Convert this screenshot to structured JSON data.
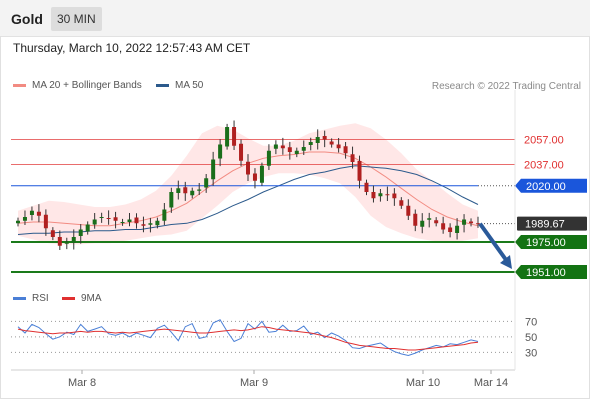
{
  "header": {
    "symbol": "Gold",
    "timeframe": "30 MIN",
    "timestamp": "Thursday, March 10, 2022 12:57:43 AM CET"
  },
  "legend": {
    "bollinger": {
      "label": "MA 20 + Bollinger Bands",
      "color": "#f28b82"
    },
    "ma50": {
      "label": "MA 50",
      "color": "#2c5a8c"
    },
    "rsi": {
      "label": "RSI",
      "color": "#4a7fd6"
    },
    "rsi_ma": {
      "label": "9MA",
      "color": "#e03030"
    }
  },
  "credit": "Research © 2022 Trading Central",
  "chart_data": [
    {
      "type": "candlestick",
      "y_range": [
        1943,
        2095
      ],
      "levels": [
        {
          "label": "2057.00",
          "value": 2057.0,
          "color": "#e03030",
          "kind": "resistance"
        },
        {
          "label": "2037.00",
          "value": 2037.0,
          "color": "#e03030",
          "kind": "resistance"
        },
        {
          "label": "2020.00",
          "value": 2020.0,
          "color": "#1a56db",
          "kind": "pivot"
        },
        {
          "label": "1989.67",
          "value": 1989.67,
          "color": "#333333",
          "kind": "last"
        },
        {
          "label": "1975.00",
          "value": 1975.0,
          "color": "#1a7a1a",
          "kind": "support"
        },
        {
          "label": "1951.00",
          "value": 1951.0,
          "color": "#1a7a1a",
          "kind": "support"
        }
      ],
      "x_labels": [
        "Mar 8",
        "Mar 9",
        "Mar 10",
        "Mar 14"
      ],
      "path": [
        1992,
        1995,
        2000,
        1996,
        1986,
        1979,
        1972,
        1975,
        1979,
        1985,
        1989,
        1993,
        1995,
        1994,
        1992,
        1991,
        1993,
        1990,
        1988,
        1990,
        1992,
        2001,
        2015,
        2018,
        2014,
        2016,
        2017,
        2026,
        2041,
        2053,
        2067,
        2052,
        2040,
        2029,
        2024,
        2036,
        2048,
        2053,
        2050,
        2047,
        2048,
        2051,
        2055,
        2059,
        2057,
        2053,
        2050,
        2046,
        2039,
        2024,
        2015,
        2010,
        2014,
        2013,
        2010,
        2004,
        1996,
        1988,
        1992,
        1994,
        1990,
        1985,
        1983,
        1988,
        1993,
        1990,
        1989.67
      ],
      "bollinger": {
        "middle": [
          1990,
          1991,
          1991,
          1990,
          1989,
          1988,
          1988,
          1990,
          1992,
          1995,
          2000,
          2006,
          2015,
          2024,
          2032,
          2038,
          2042,
          2044,
          2045,
          2047,
          2047,
          2046,
          2042,
          2035,
          2027,
          2018,
          2009,
          2001,
          1995,
          1991,
          1988
        ],
        "upper": [
          2000,
          2004,
          2008,
          2007,
          2005,
          2003,
          2003,
          2005,
          2009,
          2016,
          2028,
          2044,
          2062,
          2068,
          2065,
          2058,
          2052,
          2052,
          2056,
          2062,
          2065,
          2068,
          2070,
          2066,
          2057,
          2046,
          2033,
          2024,
          2014,
          2005,
          2000
        ],
        "lower": [
          1980,
          1977,
          1974,
          1973,
          1973,
          1974,
          1974,
          1976,
          1978,
          1980,
          1981,
          1984,
          1994,
          2004,
          2015,
          2022,
          2027,
          2030,
          2030,
          2029,
          2026,
          2022,
          2011,
          1996,
          1987,
          1982,
          1978,
          1976,
          1975,
          1976,
          1978
        ]
      },
      "ma50": [
        1981,
        1982,
        1982,
        1983,
        1983,
        1984,
        1984,
        1985,
        1985,
        1987,
        1989,
        1990,
        1993,
        1998,
        2004,
        2009,
        2015,
        2020,
        2025,
        2029,
        2031,
        2034,
        2036,
        2035,
        2034,
        2032,
        2029,
        2024,
        2018,
        2011,
        2005
      ]
    },
    {
      "type": "line",
      "name": "RSI",
      "y_ticks": [
        70,
        50,
        30
      ],
      "y_range": [
        15,
        82
      ],
      "rsi": [
        63,
        55,
        66,
        62,
        54,
        47,
        50,
        56,
        53,
        66,
        57,
        60,
        63,
        54,
        52,
        55,
        50,
        55,
        52,
        49,
        61,
        65,
        56,
        45,
        63,
        67,
        48,
        50,
        68,
        72,
        57,
        44,
        48,
        67,
        60,
        70,
        56,
        57,
        65,
        57,
        58,
        64,
        53,
        56,
        49,
        55,
        51,
        45,
        36,
        35,
        38,
        40,
        42,
        36,
        31,
        28,
        26,
        29,
        33,
        36,
        39,
        37,
        41,
        40,
        43,
        46,
        44
      ],
      "rsi_ma": [
        60,
        58,
        57,
        56,
        55,
        54,
        55,
        55,
        56,
        57,
        56,
        57,
        57,
        56,
        55,
        56,
        55,
        56,
        57,
        58,
        59,
        60,
        59,
        58,
        57,
        56,
        55,
        55,
        56,
        57,
        58,
        59,
        58,
        59,
        61,
        63,
        62,
        60,
        59,
        58,
        57,
        56,
        55,
        53,
        51,
        49,
        46,
        43,
        41,
        39,
        38,
        37,
        36,
        35,
        35,
        34,
        33,
        33,
        34,
        35,
        36,
        37,
        38,
        39,
        40,
        42,
        43
      ]
    }
  ]
}
